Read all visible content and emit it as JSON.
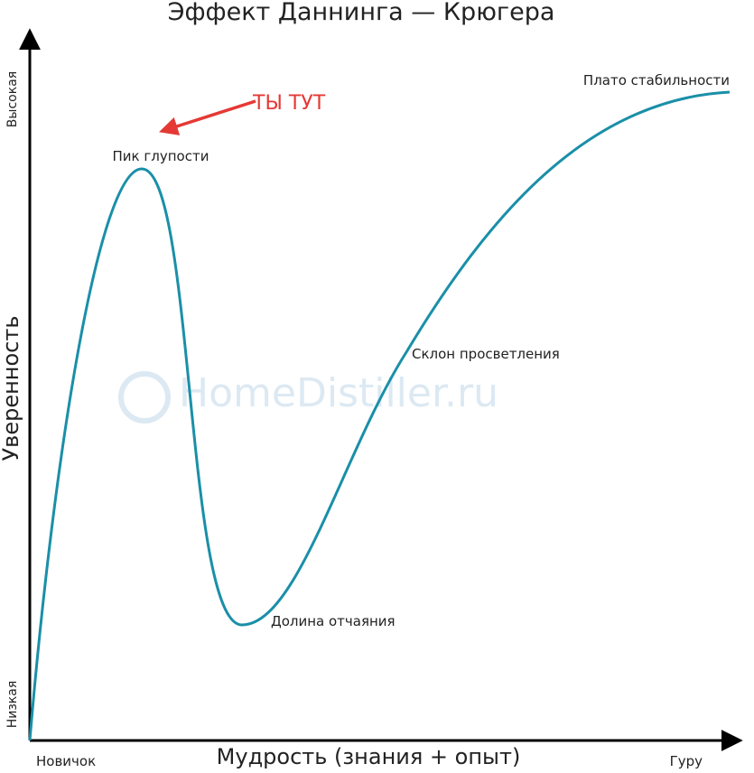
{
  "title": "Эффект Даннинга — Крюгера",
  "y_axis": {
    "label": "Уверенность",
    "high": "Высокая",
    "low": "Низкая"
  },
  "x_axis": {
    "label": "Мудрость (знания + опыт)",
    "start": "Новичок",
    "end": "Гуру"
  },
  "stages": [
    "Пик глупости",
    "Долина отчаяния",
    "Склон просветления",
    "Плато стабильности"
  ],
  "marker": "ТЫ ТУТ",
  "watermark": "HomeDistiller.ru"
}
